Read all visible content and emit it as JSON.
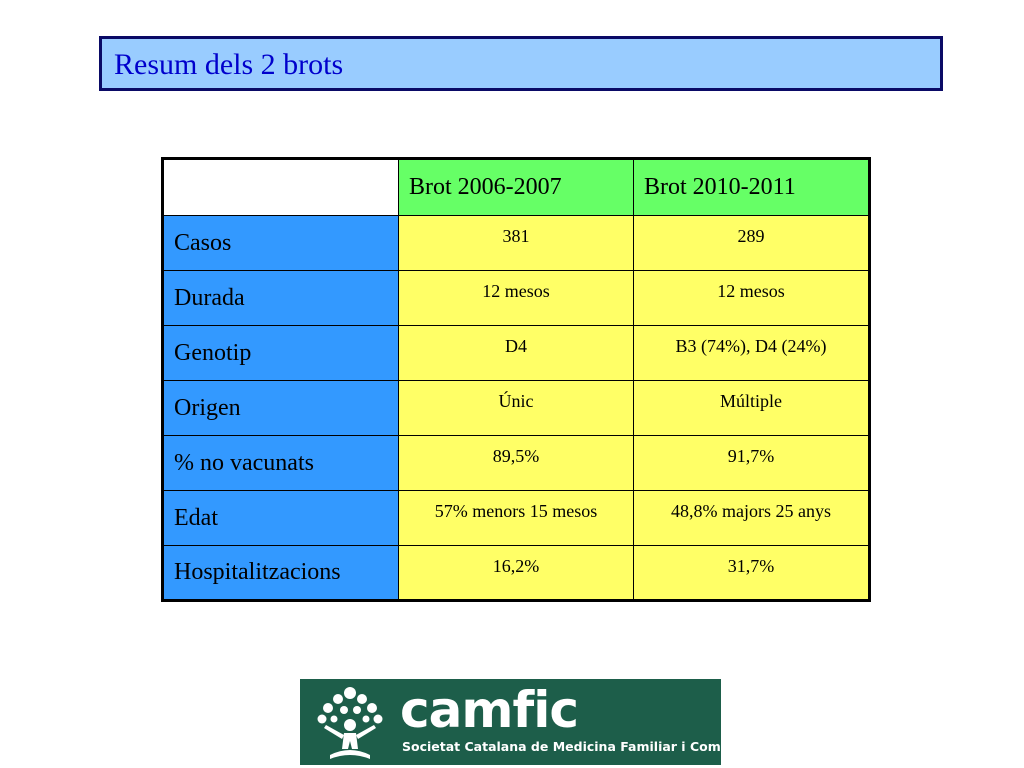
{
  "title": "Resum dels 2 brots",
  "table": {
    "corner": "",
    "columns": [
      "Brot 2006-2007",
      "Brot 2010-2011"
    ],
    "rows": [
      {
        "label": "Casos",
        "values": [
          "381",
          "289"
        ]
      },
      {
        "label": "Durada",
        "values": [
          "12 mesos",
          "12 mesos"
        ]
      },
      {
        "label": "Genotip",
        "values": [
          "D4",
          "B3 (74%), D4 (24%)"
        ]
      },
      {
        "label": "Origen",
        "values": [
          "Únic",
          "Múltiple"
        ]
      },
      {
        "label": "% no vacunats",
        "values": [
          "89,5%",
          "91,7%"
        ]
      },
      {
        "label": "Edat",
        "values": [
          "57% menors 15 mesos",
          "48,8% majors 25 anys"
        ]
      },
      {
        "label": "Hospitalitzacions",
        "values": [
          "16,2%",
          "31,7%"
        ]
      }
    ]
  },
  "logo": {
    "name": "camfic",
    "subtitle": "Societat Catalana de Medicina Familiar i Comunitària"
  },
  "colors": {
    "title_background": "#99ccff",
    "title_text": "#0000cc",
    "header_background": "#66ff66",
    "row_label_background": "#3399ff",
    "value_background": "#ffff66",
    "logo_background": "#1d5e4a"
  }
}
